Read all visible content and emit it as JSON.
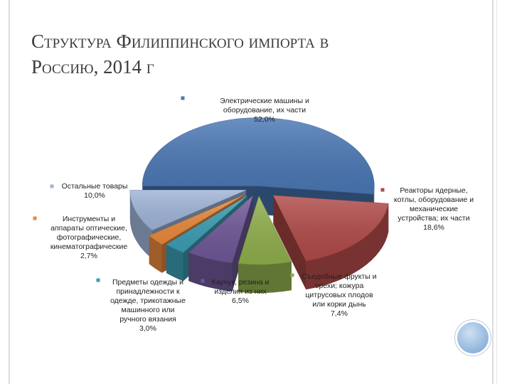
{
  "slide": {
    "title_line1": "Структура Филиппинского импорта в",
    "title_line2": "Россию, 2014 г"
  },
  "chart_data": {
    "type": "pie",
    "title": "Структура Филиппинского импорта в Россию, 2014 г",
    "style": "3d-exploded",
    "legend_placement": "labels-around",
    "slices": [
      {
        "label_lines": [
          "Электрические машины и",
          "оборудование, их части"
        ],
        "value": 52.0,
        "value_label": "52,0%",
        "color": "#4a77b4"
      },
      {
        "label_lines": [
          "Реакторы ядерные,",
          "котлы, оборудование и",
          "механические",
          "устройства; их части"
        ],
        "value": 18.6,
        "value_label": "18,6%",
        "color": "#b04a48"
      },
      {
        "label_lines": [
          "Съедобные фрукты и",
          "орехи; кожура",
          "цитрусовых плодов",
          "или корки дынь"
        ],
        "value": 7.4,
        "value_label": "7,4%",
        "color": "#8fae4c"
      },
      {
        "label_lines": [
          "Каучук, резина и",
          "изделия из них"
        ],
        "value": 6.5,
        "value_label": "6,5%",
        "color": "#6e5796"
      },
      {
        "label_lines": [
          "Предметы одежды и",
          "принадлежности к",
          "одежде, трикотажные",
          "машинного или",
          "ручного вязания"
        ],
        "value": 3.0,
        "value_label": "3,0%",
        "color": "#3c9db3"
      },
      {
        "label_lines": [
          "Инструменты и",
          "аппараты оптические,",
          "фотографические,",
          "кинематографические"
        ],
        "value": 2.7,
        "value_label": "2,7%",
        "color": "#e8893c"
      },
      {
        "label_lines": [
          "Остальные товары"
        ],
        "value": 10.0,
        "value_label": "10,0%",
        "color": "#9fb4d8"
      }
    ]
  }
}
